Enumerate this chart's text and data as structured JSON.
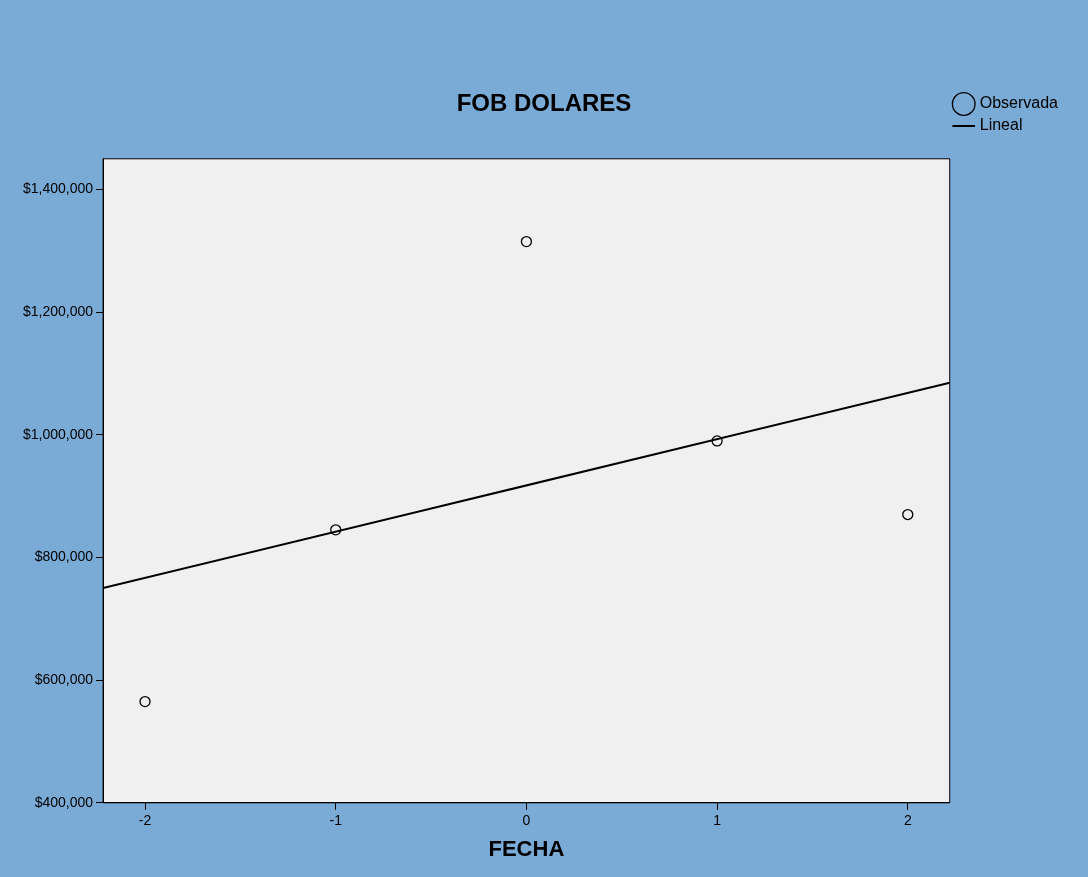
{
  "chart_data": {
    "type": "scatter",
    "title": "FOB DOLARES",
    "xlabel": "FECHA",
    "x": [
      -2,
      -1,
      0,
      1,
      2
    ],
    "series": [
      {
        "name": "Observada",
        "type": "scatter",
        "color": "#000000",
        "marker": "circle",
        "values": [
          565000,
          845000,
          1315000,
          990000,
          870000
        ]
      },
      {
        "name": "Lineal",
        "type": "line",
        "color": "#000000",
        "marker": "none",
        "line_style": "solid",
        "x": [
          -2.22,
          2.22
        ],
        "values": [
          750000,
          1085000
        ]
      }
    ],
    "xlim": [
      -2.22,
      2.22
    ],
    "xticks": [
      -2,
      -1,
      0,
      1,
      2
    ],
    "ylim": [
      400000,
      1450000
    ],
    "yticks": [
      {
        "value": 400000,
        "label": "$400,000"
      },
      {
        "value": 600000,
        "label": "$600,000"
      },
      {
        "value": 800000,
        "label": "$800,000"
      },
      {
        "value": 1000000,
        "label": "$1,000,000"
      },
      {
        "value": 1200000,
        "label": "$1,200,000"
      },
      {
        "value": 1400000,
        "label": "$1,400,000"
      }
    ],
    "grid": false,
    "legend": "top right"
  }
}
